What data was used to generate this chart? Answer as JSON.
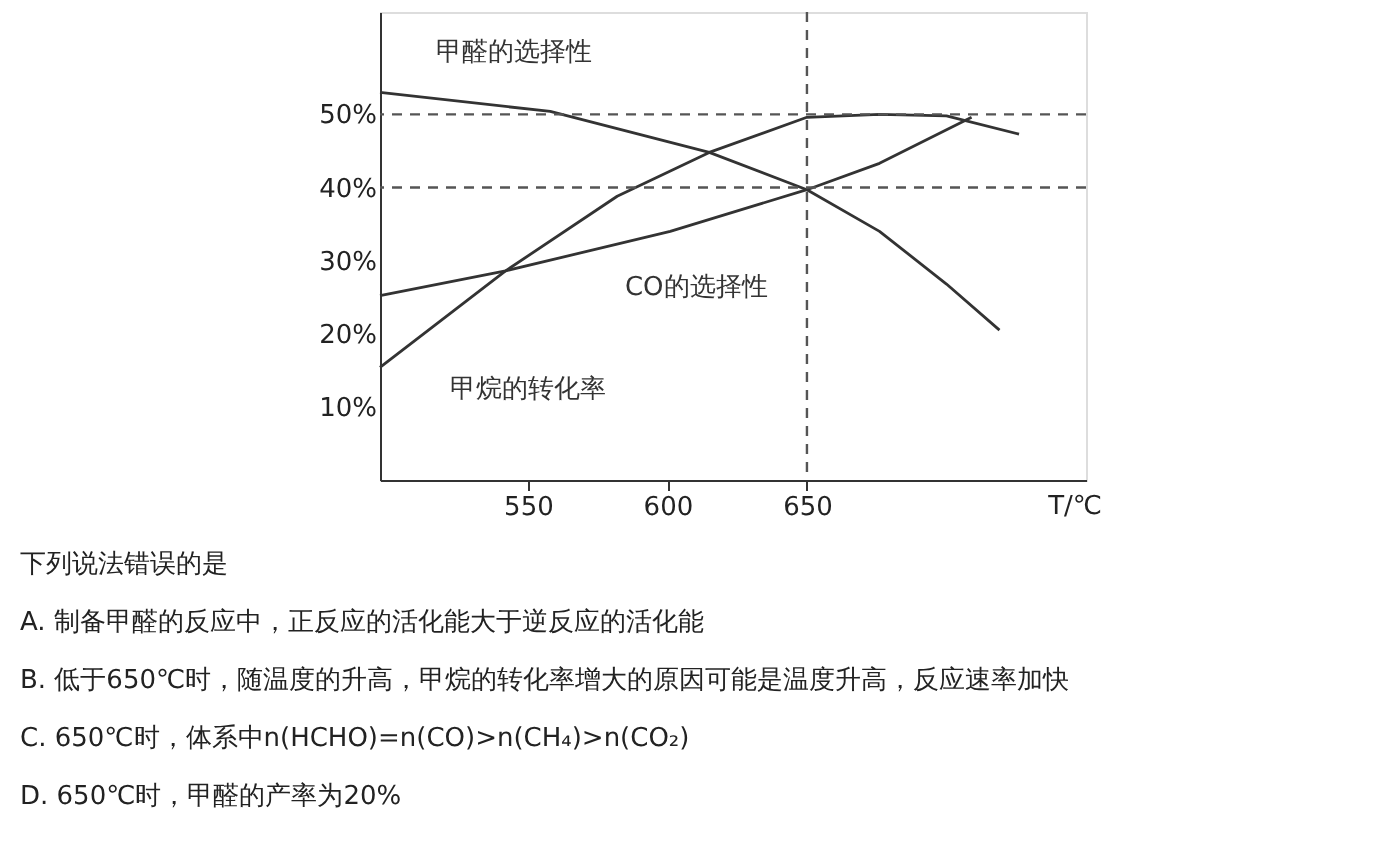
{
  "chart_data": {
    "type": "line",
    "xlabel": "T/℃",
    "xlim": [
      497,
      750
    ],
    "xticks": [
      550,
      600,
      650
    ],
    "ylim": [
      0,
      64
    ],
    "yticks": [
      {
        "value": 10,
        "label": "10%"
      },
      {
        "value": 20,
        "label": "20%"
      },
      {
        "value": 30,
        "label": "30%"
      },
      {
        "value": 40,
        "label": "40%"
      },
      {
        "value": 50,
        "label": "50%"
      }
    ],
    "marker": "none",
    "line_style": "solid",
    "series": [
      {
        "name": "甲醛的选择性",
        "color": "#333333",
        "x": [
          497,
          558,
          615,
          650,
          676,
          700,
          719
        ],
        "values": [
          53,
          50.4,
          44.8,
          39.7,
          34,
          26.8,
          20.5
        ]
      },
      {
        "name": "甲烷的转化率",
        "color": "#333333",
        "x": [
          497,
          542,
          582,
          615,
          650,
          676,
          700,
          726
        ],
        "values": [
          15.4,
          28.6,
          38.8,
          44.8,
          49.6,
          50,
          49.8,
          47.3
        ]
      },
      {
        "name": "CO的选择性",
        "color": "#333333",
        "x": [
          497,
          542,
          601,
          650,
          676,
          709
        ],
        "values": [
          25.2,
          28.6,
          34,
          39.7,
          43.3,
          49.6
        ]
      }
    ],
    "ref_lines": [
      {
        "axis": "y",
        "value": 50,
        "line_style": "dashed",
        "color": "#555555"
      },
      {
        "axis": "y",
        "value": 40,
        "line_style": "dashed",
        "color": "#555555"
      },
      {
        "axis": "x",
        "value": 650,
        "line_style": "dashed",
        "color": "#555555"
      }
    ],
    "annotations": [
      "下列说法错误的是",
      "A. 制备甲醛的反应中，正反应的活化能大于逆反应的活化能",
      "B. 低于650℃时，随温度的升高，甲烷的转化率增大的原因可能是温度升高，反应速率加快",
      "C. 650℃时，体系中n(HCHO)=n(CO)>n(CH₄)>n(CO₂)",
      "D. 650℃时，甲醛的产率为20%"
    ]
  }
}
